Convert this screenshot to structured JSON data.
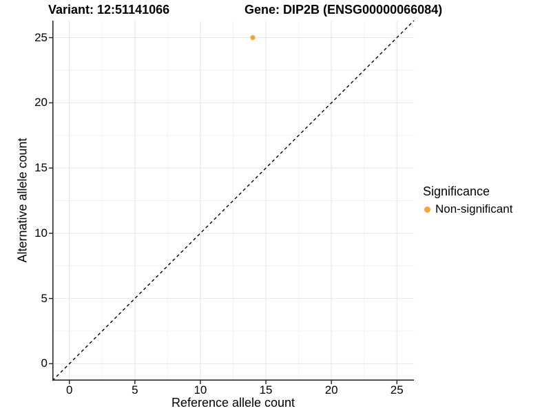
{
  "header": {
    "variant_title": "Variant: 12:51141066",
    "gene_title": "Gene: DIP2B (ENSG00000066084)"
  },
  "chart_data": {
    "type": "scatter",
    "xlabel": "Reference allele count",
    "ylabel": "Alternative allele count",
    "xlim": [
      -1.3,
      26.3
    ],
    "ylim": [
      -1.3,
      26.3
    ],
    "x_ticks": [
      0,
      5,
      10,
      15,
      20,
      25
    ],
    "y_ticks": [
      0,
      5,
      10,
      15,
      20,
      25
    ],
    "x_minor_ticks": [
      2.5,
      7.5,
      12.5,
      17.5,
      22.5
    ],
    "y_minor_ticks": [
      2.5,
      7.5,
      12.5,
      17.5,
      22.5
    ],
    "grid": true,
    "points": [
      {
        "x": 14,
        "y": 25,
        "series": "Non-significant"
      }
    ],
    "identity_line": {
      "style": "dashed",
      "equation": "y = x",
      "from": [
        -1.3,
        -1.3
      ],
      "to": [
        26.3,
        26.3
      ]
    },
    "legend": {
      "title": "Significance",
      "position": "right",
      "entries": [
        {
          "label": "Non-significant",
          "color": "#FBA338"
        }
      ]
    },
    "colors": {
      "point": "#FBA338",
      "grid_major": "#E4E4E4",
      "grid_minor": "#F2F2F2",
      "axis_line": "#2B2B2B",
      "dashed_line": "#000000",
      "text": "#000000",
      "background": "#FFFFFF"
    }
  }
}
